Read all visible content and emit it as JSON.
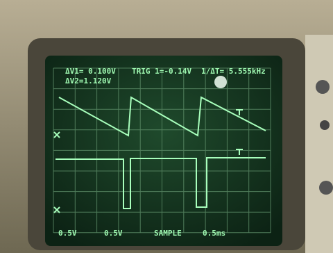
{
  "screen": {
    "readout_top": {
      "dv1": "ΔV1= 0.100V",
      "trig": "TRIG 1=-0.14V",
      "freq": "1/ΔT= 5.555kHz",
      "dv2": "ΔV2=1.120V"
    },
    "readout_bottom": {
      "ch1": "0.5V",
      "ch2": "0.5V",
      "mode": "SAMPLE",
      "time": "0.5ms"
    }
  }
}
